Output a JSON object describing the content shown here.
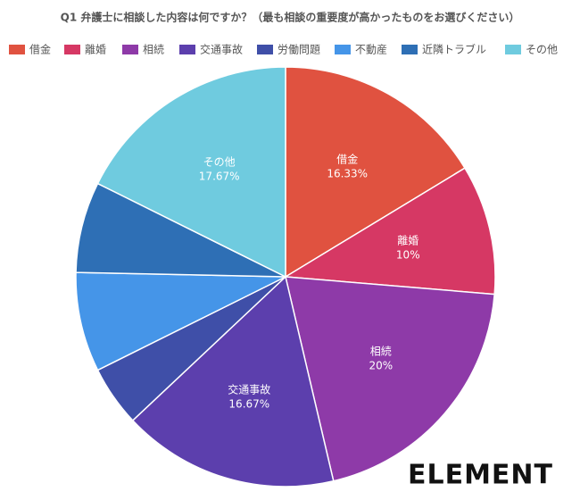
{
  "chart_data": {
    "type": "pie",
    "title": "Q1 弁護士に相談した内容は何ですか？（最も相談の重要度が高かったものをお選びください）",
    "categories": [
      "借金",
      "離婚",
      "相続",
      "交通事故",
      "労働問題",
      "不動産",
      "近隣トラブル",
      "その他"
    ],
    "values": [
      16.33,
      10,
      20,
      16.67,
      4.67,
      7.67,
      7,
      17.67
    ],
    "value_labels": [
      "16.33%",
      "10%",
      "20%",
      "16.67%",
      null,
      null,
      null,
      "17.67%"
    ],
    "colors": [
      "#e05240",
      "#d63864",
      "#8e3aa8",
      "#5c3fad",
      "#3f4fa8",
      "#4595e8",
      "#2e6fb5",
      "#6fcbdf"
    ],
    "legend": "top"
  },
  "logo": "ELEMENT"
}
